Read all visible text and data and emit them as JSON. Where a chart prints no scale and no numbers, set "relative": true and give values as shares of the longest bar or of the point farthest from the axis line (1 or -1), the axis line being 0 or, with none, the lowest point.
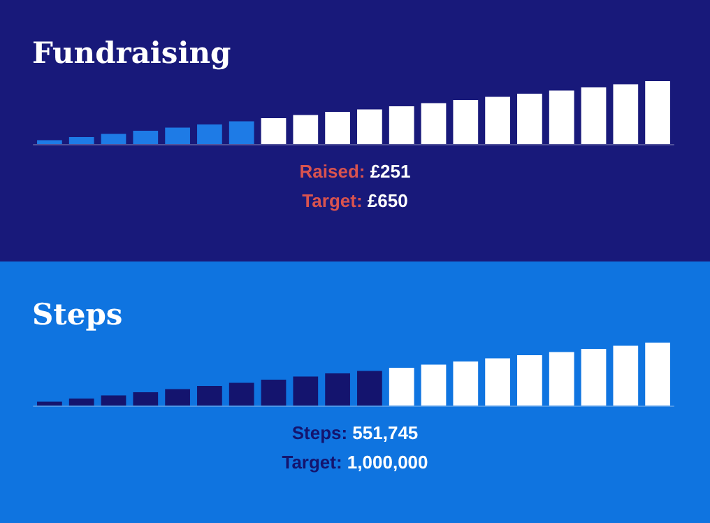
{
  "chart_data": [
    {
      "type": "bar",
      "title": "Fundraising",
      "relative": true,
      "categories": [
        null,
        null,
        null,
        null,
        null,
        null,
        null,
        null,
        null,
        null,
        null,
        null,
        null,
        null,
        null,
        null,
        null,
        null,
        null,
        null
      ],
      "values": [
        0.06,
        0.11,
        0.16,
        0.21,
        0.26,
        0.31,
        0.36,
        0.41,
        0.46,
        0.51,
        0.55,
        0.6,
        0.65,
        0.7,
        0.75,
        0.8,
        0.85,
        0.9,
        0.95,
        1.0
      ],
      "colors": [
        "#1e7be6",
        "#1e7be6",
        "#1e7be6",
        "#1e7be6",
        "#1e7be6",
        "#1e7be6",
        "#1e7be6",
        "#ffffff",
        "#ffffff",
        "#ffffff",
        "#ffffff",
        "#ffffff",
        "#ffffff",
        "#ffffff",
        "#ffffff",
        "#ffffff",
        "#ffffff",
        "#ffffff",
        "#ffffff",
        "#ffffff"
      ],
      "annotations": [
        "Raised: £251",
        "Target: £650"
      ]
    },
    {
      "type": "bar",
      "title": "Steps",
      "relative": true,
      "categories": [
        null,
        null,
        null,
        null,
        null,
        null,
        null,
        null,
        null,
        null,
        null,
        null,
        null,
        null,
        null,
        null,
        null,
        null,
        null,
        null
      ],
      "values": [
        0.06,
        0.11,
        0.16,
        0.21,
        0.26,
        0.31,
        0.36,
        0.41,
        0.46,
        0.51,
        0.55,
        0.6,
        0.65,
        0.7,
        0.75,
        0.8,
        0.85,
        0.9,
        0.95,
        1.0
      ],
      "colors": [
        "#14146e",
        "#14146e",
        "#14146e",
        "#14146e",
        "#14146e",
        "#14146e",
        "#14146e",
        "#14146e",
        "#14146e",
        "#14146e",
        "#14146e",
        "#ffffff",
        "#ffffff",
        "#ffffff",
        "#ffffff",
        "#ffffff",
        "#ffffff",
        "#ffffff",
        "#ffffff",
        "#ffffff"
      ],
      "annotations": [
        "Steps: 551,745",
        "Target: 1,000,000"
      ]
    }
  ]
}
